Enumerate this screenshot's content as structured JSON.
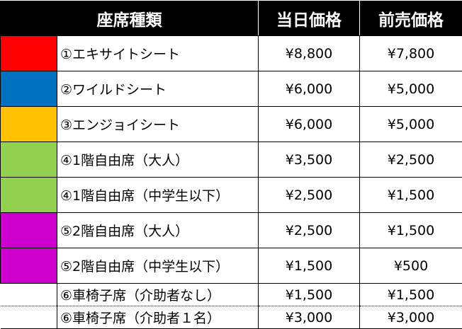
{
  "header": {
    "seat_type": "座席種類",
    "day_price": "当日価格",
    "advance_price": "前売価格"
  },
  "rows": [
    {
      "color": "#ff0000",
      "name": "①エキサイトシート",
      "day": "¥8,800",
      "advance": "¥7,800"
    },
    {
      "color": "#0070c0",
      "name": "②ワイルドシート",
      "day": "¥6,000",
      "advance": "¥5,000"
    },
    {
      "color": "#ffc000",
      "name": "③エンジョイシート",
      "day": "¥6,000",
      "advance": "¥5,000"
    },
    {
      "color": "#92d050",
      "name": "④1階自由席（大人）",
      "day": "¥3,500",
      "advance": "¥2,500"
    },
    {
      "color": "#92d050",
      "name": "④1階自由席（中学生以下）",
      "day": "¥2,500",
      "advance": "¥1,500"
    },
    {
      "color": "#cc00cc",
      "name": "⑤2階自由席（大人）",
      "day": "¥2,500",
      "advance": "¥1,500"
    },
    {
      "color": "#cc00cc",
      "name": "⑤2階自由席（中学生以下）",
      "day": "¥1,500",
      "advance": "¥500"
    },
    {
      "color": "#ffffff",
      "name": "⑥車椅子席（介助者なし）",
      "day": "¥1,500",
      "advance": "¥1,500"
    },
    {
      "color": "#ffffff",
      "name": "⑥車椅子席（介助者１名）",
      "day": "¥3,000",
      "advance": "¥3,000"
    }
  ]
}
